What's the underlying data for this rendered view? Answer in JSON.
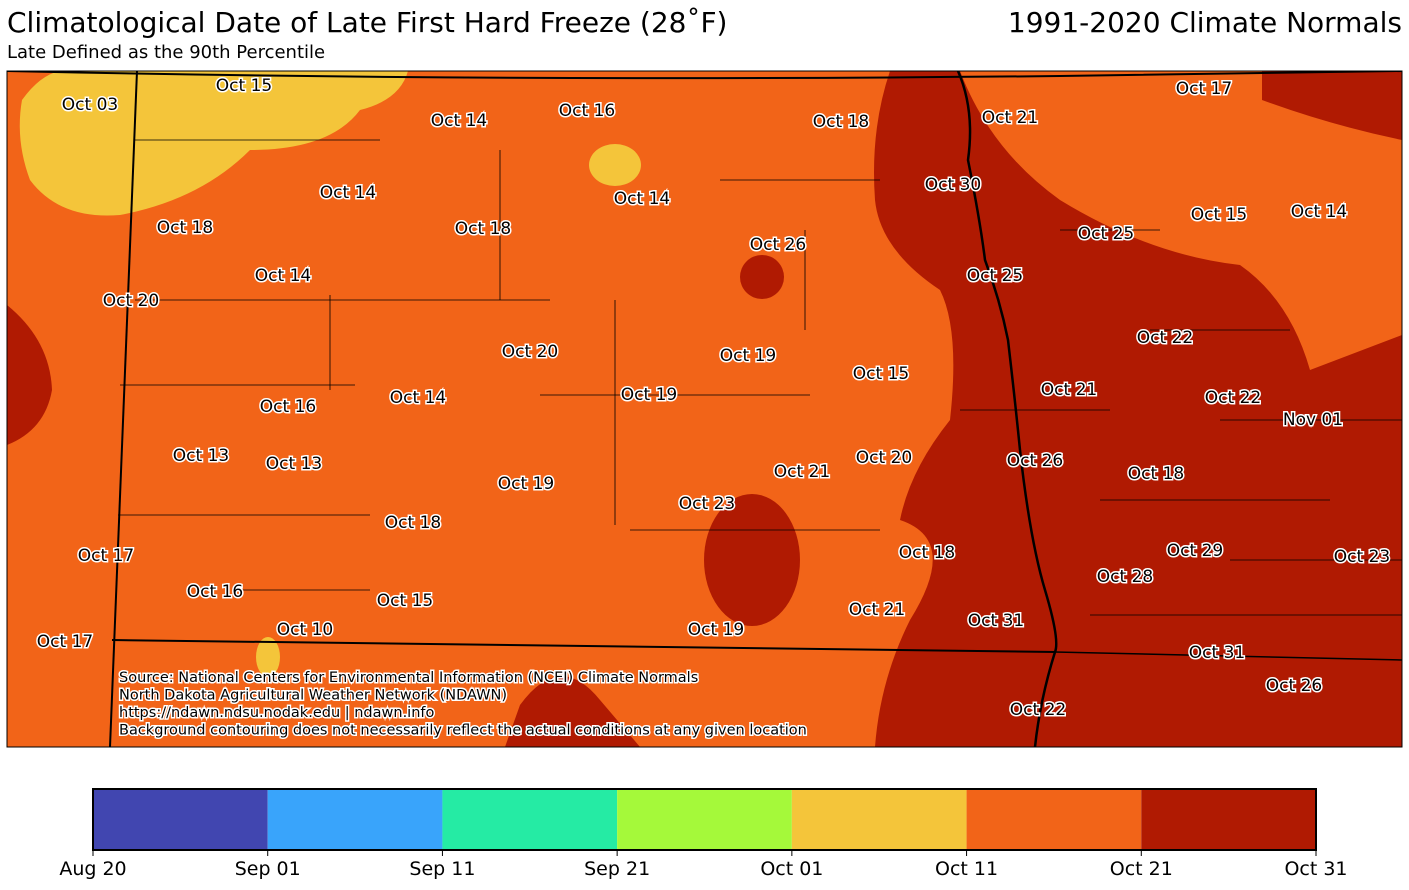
{
  "header": {
    "title": "Climatological Date of Late First Hard Freeze (28$^\\circ$F)",
    "title_display": "Climatological Date of Late First Hard Freeze (28˚F)",
    "normals": "1991-2020 Climate Normals",
    "subtitle": "Late Defined as the 90th Percentile"
  },
  "stations": [
    "Oct 03",
    "Oct 15",
    "Oct 14",
    "Oct 16",
    "Oct 18",
    "Oct 21",
    "Oct 17",
    "Oct 14",
    "Oct 14",
    "Oct 30",
    "Oct 15",
    "Oct 14",
    "Oct 18",
    "Oct 18",
    "Oct 26",
    "Oct 25",
    "Oct 14",
    "Oct 25",
    "Oct 20",
    "Oct 22",
    "Oct 20",
    "Oct 19",
    "Oct 15",
    "Oct 21",
    "Oct 19",
    "Oct 14",
    "Oct 22",
    "Nov 01",
    "Oct 16",
    "Oct 13",
    "Oct 13",
    "Oct 26",
    "Oct 20",
    "Oct 21",
    "Oct 18",
    "Oct 19",
    "Oct 23",
    "Oct 18",
    "Oct 29",
    "Oct 18",
    "Oct 23",
    "Oct 17",
    "Oct 28",
    "Oct 16",
    "Oct 15",
    "Oct 21",
    "Oct 31",
    "Oct 10",
    "Oct 19",
    "Oct 17",
    "Oct 31",
    "Oct 26",
    "Oct 22"
  ],
  "source": [
    "Source: National Centers for Environmental Information (NCEI) Climate Normals",
    "North Dakota Agricultural Weather Network (NDAWN)",
    "https://ndawn.ndsu.nodak.edu | ndawn.info",
    "Background contouring does not necessarily reflect the actual conditions at any given location"
  ],
  "colorbar": {
    "colors": [
      "#4146b0",
      "#39a4fb",
      "#25eba4",
      "#a5f93a",
      "#f4c53a",
      "#f26418",
      "#b01a02"
    ],
    "labels": [
      "Aug 20",
      "Sep 01",
      "Sep 11",
      "Sep 21",
      "Oct 01",
      "Oct 11",
      "Oct 21",
      "Oct 31"
    ]
  }
}
